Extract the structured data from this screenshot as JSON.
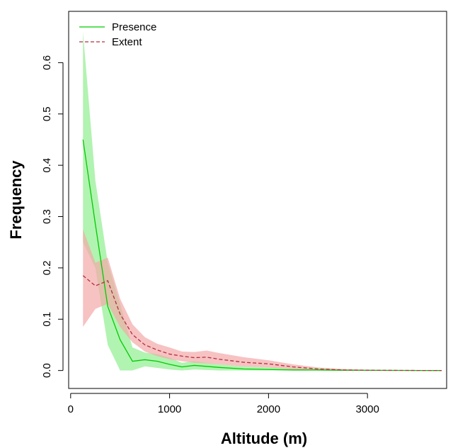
{
  "chart_data": {
    "type": "line",
    "xlabel": "Altitude (m)",
    "ylabel": "Frequency",
    "xlim": [
      -20,
      3800
    ],
    "ylim": [
      -0.035,
      0.7
    ],
    "xticks": [
      0,
      1000,
      2000,
      3000
    ],
    "xtick_labels": [
      "0",
      "1000",
      "2000",
      "3000"
    ],
    "yticks": [
      0.0,
      0.1,
      0.2,
      0.3,
      0.4,
      0.5,
      0.6
    ],
    "ytick_labels": [
      "0.0",
      "0.1",
      "0.2",
      "0.3",
      "0.4",
      "0.5",
      "0.6"
    ],
    "legend_position": "top-left",
    "grid": false,
    "series": [
      {
        "name": "Presence",
        "color": "#00cc00",
        "band_color": "#90ee90",
        "line_style": "solid",
        "x": [
          125,
          250,
          375,
          500,
          625,
          750,
          875,
          1000,
          1125,
          1250,
          1500,
          1750,
          2000,
          2250,
          2500,
          2750,
          3000,
          3250,
          3500,
          3750
        ],
        "y": [
          0.45,
          0.285,
          0.125,
          0.06,
          0.018,
          0.021,
          0.018,
          0.012,
          0.007,
          0.01,
          0.006,
          0.003,
          0.002,
          0.001,
          0.001,
          0.0005,
          0.0003,
          0.0002,
          0.0001,
          0.0
        ],
        "lower": [
          0.25,
          0.2,
          0.05,
          0.0,
          0.0,
          0.008,
          0.005,
          0.002,
          0.0,
          0.002,
          0.0,
          0.0,
          0.0,
          0.0,
          0.0,
          0.0,
          0.0,
          0.0,
          0.0,
          0.0
        ],
        "upper": [
          0.66,
          0.37,
          0.21,
          0.13,
          0.045,
          0.035,
          0.032,
          0.025,
          0.015,
          0.018,
          0.012,
          0.008,
          0.006,
          0.004,
          0.003,
          0.002,
          0.001,
          0.0008,
          0.0005,
          0.0
        ]
      },
      {
        "name": "Extent",
        "color": "#b03040",
        "band_color": "#f4a8a8",
        "line_style": "dashed",
        "x": [
          125,
          250,
          375,
          500,
          625,
          750,
          875,
          1000,
          1125,
          1250,
          1375,
          1500,
          1750,
          2000,
          2250,
          2500,
          2750,
          3000,
          3250,
          3500,
          3750
        ],
        "y": [
          0.185,
          0.165,
          0.175,
          0.11,
          0.07,
          0.05,
          0.04,
          0.032,
          0.028,
          0.025,
          0.026,
          0.022,
          0.016,
          0.013,
          0.007,
          0.003,
          0.001,
          0.0005,
          0.0003,
          0.0001,
          0.0
        ],
        "lower": [
          0.085,
          0.12,
          0.13,
          0.085,
          0.055,
          0.037,
          0.028,
          0.022,
          0.018,
          0.015,
          0.014,
          0.012,
          0.008,
          0.006,
          0.002,
          0.0,
          0.0,
          0.0,
          0.0,
          0.0,
          0.0
        ],
        "upper": [
          0.275,
          0.21,
          0.22,
          0.14,
          0.09,
          0.065,
          0.052,
          0.045,
          0.037,
          0.036,
          0.039,
          0.034,
          0.026,
          0.02,
          0.012,
          0.006,
          0.003,
          0.0015,
          0.0008,
          0.0003,
          0.0
        ]
      }
    ]
  }
}
